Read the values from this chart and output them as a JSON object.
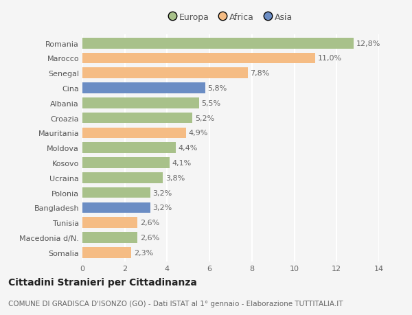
{
  "categories": [
    "Romania",
    "Marocco",
    "Senegal",
    "Cina",
    "Albania",
    "Croazia",
    "Mauritania",
    "Moldova",
    "Kosovo",
    "Ucraina",
    "Polonia",
    "Bangladesh",
    "Tunisia",
    "Macedonia d/N.",
    "Somalia"
  ],
  "values": [
    12.8,
    11.0,
    7.8,
    5.8,
    5.5,
    5.2,
    4.9,
    4.4,
    4.1,
    3.8,
    3.2,
    3.2,
    2.6,
    2.6,
    2.3
  ],
  "continents": [
    "Europa",
    "Africa",
    "Africa",
    "Asia",
    "Europa",
    "Europa",
    "Africa",
    "Europa",
    "Europa",
    "Europa",
    "Europa",
    "Asia",
    "Africa",
    "Europa",
    "Africa"
  ],
  "colors": {
    "Europa": "#a8c18a",
    "Africa": "#f5bc84",
    "Asia": "#6b8dc4"
  },
  "xlim": [
    0,
    14
  ],
  "xticks": [
    0,
    2,
    4,
    6,
    8,
    10,
    12,
    14
  ],
  "title": "Cittadini Stranieri per Cittadinanza",
  "subtitle": "COMUNE DI GRADISCA D'ISONZO (GO) - Dati ISTAT al 1° gennaio - Elaborazione TUTTITALIA.IT",
  "background_color": "#f5f5f5",
  "grid_color": "#ffffff",
  "bar_height": 0.72,
  "label_fontsize": 8,
  "tick_fontsize": 8,
  "ytick_fontsize": 8,
  "title_fontsize": 10,
  "subtitle_fontsize": 7.5
}
